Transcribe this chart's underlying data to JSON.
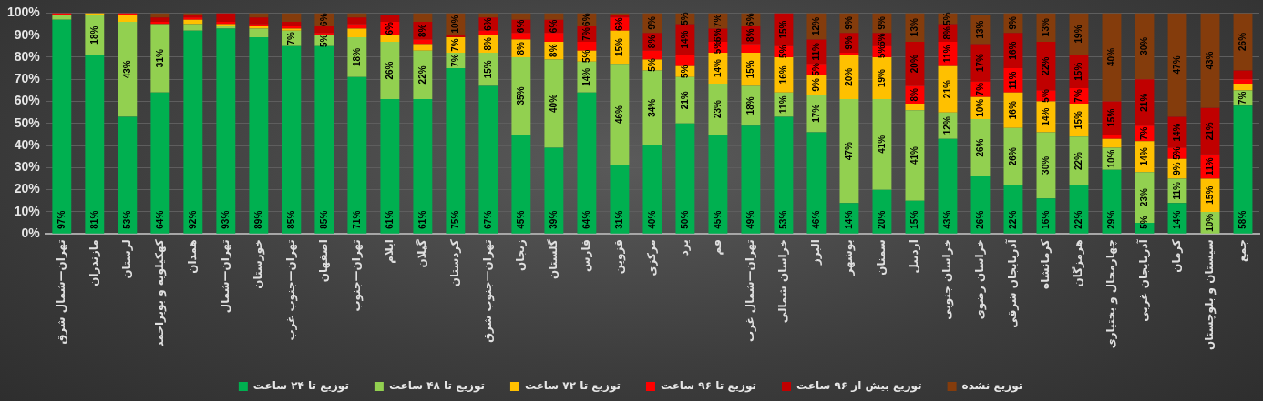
{
  "chart_data": {
    "type": "bar",
    "stacked": true,
    "legend": "bottom",
    "grid": "y",
    "categories": [
      "تهران—شمال شرق",
      "مازندران",
      "لرستان",
      "کهکیلویه و بویراحمد",
      "همدان",
      "تهران—شمال",
      "خوزستان",
      "تهران—جنوب غرب",
      "اصفهان",
      "تهران—جنوب",
      "ایلام",
      "گیلان",
      "کردستان",
      "تهران—جنوب شرق",
      "زنجان",
      "گلستان",
      "فارس",
      "قزوین",
      "مرکزی",
      "یزد",
      "قم",
      "تهران—شمال غرب",
      "خراسان شمالی",
      "البرز",
      "بوشهر",
      "سمنان",
      "اردبیل",
      "خراسان جنوبی",
      "خراسان رضوی",
      "آذربایجان شرقی",
      "کرمانشاه",
      "هرمزگان",
      "چهارمحال و بختیاری",
      "آذربایجان غربی",
      "کرمان",
      "سیستان و بلوچستان",
      "جمع"
    ],
    "ylim": [
      0,
      100
    ],
    "yticks": [
      {
        "value": 0,
        "label": "0%"
      },
      {
        "value": 10,
        "label": "10%"
      },
      {
        "value": 20,
        "label": "20%"
      },
      {
        "value": 30,
        "label": "30%"
      },
      {
        "value": 40,
        "label": "40%"
      },
      {
        "value": 50,
        "label": "50%"
      },
      {
        "value": 60,
        "label": "60%"
      },
      {
        "value": 70,
        "label": "70%"
      },
      {
        "value": 80,
        "label": "80%"
      },
      {
        "value": 90,
        "label": "90%"
      },
      {
        "value": 100,
        "label": "100%"
      }
    ],
    "series": [
      {
        "name": "توزیع تا ۲۴ ساعت",
        "color": "#00b050",
        "values": [
          97,
          81,
          53,
          64,
          92,
          93,
          89,
          85,
          85,
          71,
          61,
          61,
          75,
          67,
          45,
          39,
          64,
          31,
          40,
          50,
          45,
          49,
          53,
          46,
          14,
          20,
          15,
          43,
          26,
          22,
          16,
          22,
          29,
          5,
          14,
          0,
          58
        ],
        "value_labels": [
          "97%",
          "81%",
          "53%",
          "64%",
          "92%",
          "93%",
          "89%",
          "85%",
          "85%",
          "71%",
          "61%",
          "61%",
          "75%",
          "67%",
          "45%",
          "39%",
          "64%",
          "31%",
          "40%",
          "50%",
          "45%",
          "49%",
          "53%",
          "46%",
          "14%",
          "20%",
          "15%",
          "43%",
          "26%",
          "22%",
          "16%",
          "22%",
          "29%",
          "5%",
          "14%",
          null,
          "58%"
        ]
      },
      {
        "name": "توزیع تا ۴۸ ساعت",
        "color": "#92d050",
        "values": [
          2,
          18,
          43,
          31,
          3,
          1,
          4,
          7,
          5,
          18,
          26,
          22,
          7,
          15,
          35,
          40,
          14,
          46,
          34,
          21,
          23,
          18,
          11,
          17,
          47,
          41,
          41,
          12,
          26,
          26,
          30,
          22,
          10,
          23,
          11,
          10,
          7
        ],
        "value_labels": [
          null,
          "18%",
          "43%",
          "31%",
          null,
          null,
          null,
          "7%",
          "5%",
          "18%",
          "26%",
          "22%",
          "7%",
          "15%",
          "35%",
          "40%",
          "14%",
          "46%",
          "34%",
          "21%",
          "23%",
          "18%",
          "11%",
          "17%",
          "47%",
          "41%",
          "41%",
          "12%",
          "26%",
          "26%",
          "30%",
          "22%",
          "10%",
          "23%",
          "11%",
          "10%",
          "7%"
        ]
      },
      {
        "name": "توزیع تا ۷۲ ساعت",
        "color": "#ffc000",
        "values": [
          0,
          1,
          3,
          0,
          2,
          1,
          1,
          1,
          0,
          4,
          3,
          3,
          7,
          8,
          8,
          8,
          5,
          15,
          5,
          5,
          14,
          15,
          16,
          9,
          20,
          19,
          3,
          21,
          10,
          16,
          14,
          15,
          4,
          14,
          9,
          15,
          3
        ],
        "value_labels": [
          null,
          null,
          null,
          null,
          null,
          null,
          null,
          null,
          null,
          null,
          null,
          null,
          "7%",
          "8%",
          "8%",
          "8%",
          "5%",
          "15%",
          "5%",
          "5%",
          "14%",
          "15%",
          "16%",
          "9%",
          "20%",
          "19%",
          null,
          "21%",
          "10%",
          "16%",
          "14%",
          "15%",
          null,
          "14%",
          "9%",
          "15%",
          null
        ]
      },
      {
        "name": "توزیع تا ۹۶ ساعت",
        "color": "#ff0000",
        "values": [
          1,
          0,
          1,
          1,
          1,
          1,
          1,
          1,
          1,
          2,
          6,
          2,
          0,
          2,
          3,
          4,
          4,
          6,
          4,
          5,
          5,
          4,
          5,
          5,
          1,
          5,
          8,
          11,
          7,
          11,
          5,
          7,
          2,
          7,
          5,
          11,
          2
        ],
        "value_labels": [
          null,
          null,
          null,
          null,
          null,
          null,
          null,
          null,
          null,
          null,
          "6%",
          null,
          null,
          null,
          null,
          null,
          null,
          "6%",
          null,
          null,
          "5%",
          null,
          "5%",
          "5%",
          null,
          "5%",
          "8%",
          "11%",
          "7%",
          "11%",
          "5%",
          "7%",
          null,
          "7%",
          "5%",
          "11%",
          null
        ]
      },
      {
        "name": "توزیع بیش از ۹۶ ساعت",
        "color": "#c00000",
        "values": [
          0,
          0,
          0,
          2,
          1,
          4,
          3,
          2,
          3,
          3,
          3,
          8,
          1,
          6,
          6,
          6,
          7,
          1,
          8,
          14,
          6,
          8,
          15,
          11,
          9,
          6,
          20,
          8,
          17,
          16,
          22,
          15,
          15,
          21,
          14,
          21,
          4
        ],
        "value_labels": [
          null,
          null,
          null,
          null,
          null,
          null,
          null,
          null,
          null,
          null,
          null,
          "8%",
          null,
          "6%",
          "6%",
          "6%",
          "7%",
          null,
          "8%",
          "14%",
          "6%",
          "8%",
          "15%",
          "11%",
          "9%",
          "6%",
          "20%",
          "8%",
          "17%",
          "16%",
          "22%",
          "15%",
          "15%",
          "21%",
          "14%",
          "21%",
          null
        ]
      },
      {
        "name": "توزیع نشده",
        "color": "#843c0c",
        "values": [
          0,
          0,
          0,
          2,
          1,
          0,
          2,
          4,
          6,
          2,
          0,
          4,
          10,
          2,
          3,
          3,
          6,
          1,
          9,
          5,
          7,
          6,
          0,
          12,
          9,
          9,
          13,
          5,
          13,
          9,
          13,
          19,
          40,
          30,
          47,
          43,
          26
        ],
        "value_labels": [
          null,
          null,
          null,
          null,
          null,
          null,
          null,
          null,
          "6%",
          null,
          null,
          null,
          "10%",
          null,
          null,
          null,
          "6%",
          null,
          "9%",
          "5%",
          "7%",
          "6%",
          null,
          "12%",
          "9%",
          "9%",
          "13%",
          "5%",
          "13%",
          "9%",
          "13%",
          "19%",
          "40%",
          "30%",
          "47%",
          "43%",
          "26%"
        ]
      }
    ]
  }
}
